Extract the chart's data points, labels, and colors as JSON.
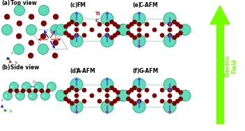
{
  "ti_color": "#60DDB8",
  "ti_edge": "#30aa88",
  "c_color": "#880000",
  "c_edge": "#550000",
  "arrow_up_color": "#3355ff",
  "arrow_down_color": "#8833cc",
  "bond_color": "#88ccbb",
  "ef_color": "#77ff00",
  "bg_color": "#ffffff",
  "red": "#cc0000",
  "blue": "#0000cc",
  "green": "#009900",
  "purple": "#880088",
  "j_label_red": "#cc0000",
  "j_label_blue": "#0000cc",
  "j_label_purple": "#880088",
  "unitcell_color": "#aaaadd",
  "panel_labels": [
    "(a)",
    "(b)",
    "(c)",
    "(d)",
    "(e)",
    "(f)"
  ],
  "panel_titles": [
    "Top view",
    "Side view",
    "FM",
    "A-AFM",
    "C-AFM",
    "G-AFM"
  ]
}
